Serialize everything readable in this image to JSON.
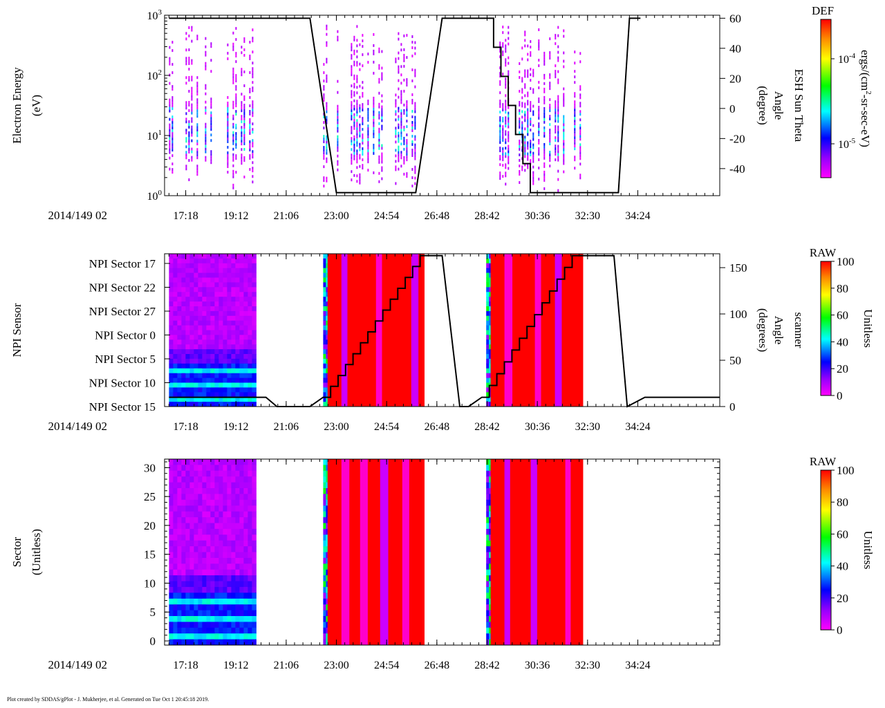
{
  "footer": "Plot created by SDDAS/gPlot - J. Mukherjee, et al.  Generated on Tue Oct 1 20:45:18 2019.",
  "colors": {
    "trace": "#000000",
    "saturated": "#ff0000"
  },
  "chart_data": [
    {
      "type": "heatmap",
      "panel": "electron-energy",
      "date_label": "2014/149 02",
      "ylabel": "Electron Energy",
      "yunits": "(eV)",
      "yscale": "log",
      "ylim": [
        1,
        1000
      ],
      "y_ticks": [
        "10^0",
        "10^1",
        "10^2",
        "10^3"
      ],
      "xlim": [
        "02:16:30",
        "02:37:30"
      ],
      "x_ticks": [
        "17:18",
        "19:12",
        "21:06",
        "23:00",
        "24:54",
        "26:48",
        "28:42",
        "30:36",
        "32:30",
        "34:24"
      ],
      "data_time_ranges": [
        [
          "02:16:40",
          "02:19:55"
        ],
        [
          "02:22:30",
          "02:26:00"
        ],
        [
          "02:29:10",
          "02:32:15"
        ]
      ],
      "colorbar": {
        "label_top": "DEF",
        "units_base": "ergs/(cm",
        "units_exp": "2",
        "units_rest": "-sr-sec-eV)",
        "ticks": [
          "10^-5",
          "10^-4"
        ]
      },
      "overlay": {
        "name": "ESH Sun Theta",
        "axis_label": "Angle",
        "axis_units": "(degree)",
        "ylim": [
          -58,
          62
        ],
        "ticks": [
          -40,
          -20,
          0,
          20,
          40,
          60
        ],
        "points": [
          [
            "02:16:40",
            60
          ],
          [
            "02:21:10",
            60
          ],
          [
            "02:22:00",
            60
          ],
          [
            "02:23:00",
            -56
          ],
          [
            "02:24:50",
            -56
          ],
          [
            "02:26:00",
            -56
          ],
          [
            "02:27:00",
            60
          ],
          [
            "02:27:40",
            60
          ],
          [
            "02:28:40",
            60
          ],
          [
            "02:30:20",
            -56
          ],
          [
            "02:32:20",
            -56
          ],
          [
            "02:33:40",
            -56
          ],
          [
            "02:34:05",
            60
          ],
          [
            "02:34:30",
            60
          ]
        ]
      }
    },
    {
      "type": "heatmap",
      "panel": "npi-sensor",
      "date_label": "2014/149 02",
      "ylabel": "NPI Sensor",
      "y_ticks": [
        "NPI Sector 17",
        "NPI Sector 22",
        "NPI Sector 27",
        "NPI Sector 0",
        "NPI Sector 5",
        "NPI Sector 10",
        "NPI Sector 15"
      ],
      "xlim": [
        "02:16:30",
        "02:37:30"
      ],
      "x_ticks": [
        "17:18",
        "19:12",
        "21:06",
        "23:00",
        "24:54",
        "26:48",
        "28:42",
        "30:36",
        "32:30",
        "34:24"
      ],
      "colorbar": {
        "label_top": "RAW",
        "units": "Unitless",
        "range": [
          0,
          100
        ],
        "ticks": [
          0,
          20,
          40,
          60,
          80,
          100
        ]
      },
      "overlay": {
        "name": "scanner",
        "axis_label": "Angle",
        "axis_units": "(degrees)",
        "ylim": [
          0,
          165
        ],
        "ticks": [
          0,
          50,
          100,
          150
        ],
        "points": [
          [
            "02:16:40",
            10
          ],
          [
            "02:20:20",
            10
          ],
          [
            "02:20:45",
            0
          ],
          [
            "02:22:00",
            0
          ],
          [
            "02:22:30",
            10
          ],
          [
            "02:26:10",
            163
          ],
          [
            "02:27:00",
            163
          ],
          [
            "02:27:40",
            0
          ],
          [
            "02:28:00",
            0
          ],
          [
            "02:28:30",
            10
          ],
          [
            "02:31:55",
            163
          ],
          [
            "02:33:30",
            163
          ],
          [
            "02:34:00",
            0
          ],
          [
            "02:34:40",
            10
          ],
          [
            "02:37:30",
            10
          ]
        ]
      }
    },
    {
      "type": "heatmap",
      "panel": "sector",
      "date_label": "2014/149 02",
      "ylabel": "Sector",
      "yunits": "(Unitless)",
      "ylim": [
        0,
        31
      ],
      "y_ticks": [
        0,
        5,
        10,
        15,
        20,
        25,
        30
      ],
      "xlim": [
        "02:16:30",
        "02:37:30"
      ],
      "x_ticks": [
        "17:18",
        "19:12",
        "21:06",
        "23:00",
        "24:54",
        "26:48",
        "28:42",
        "30:36",
        "32:30",
        "34:24"
      ],
      "colorbar": {
        "label_top": "RAW",
        "units": "Unitless",
        "range": [
          0,
          100
        ],
        "ticks": [
          0,
          20,
          40,
          60,
          80,
          100
        ]
      }
    }
  ]
}
